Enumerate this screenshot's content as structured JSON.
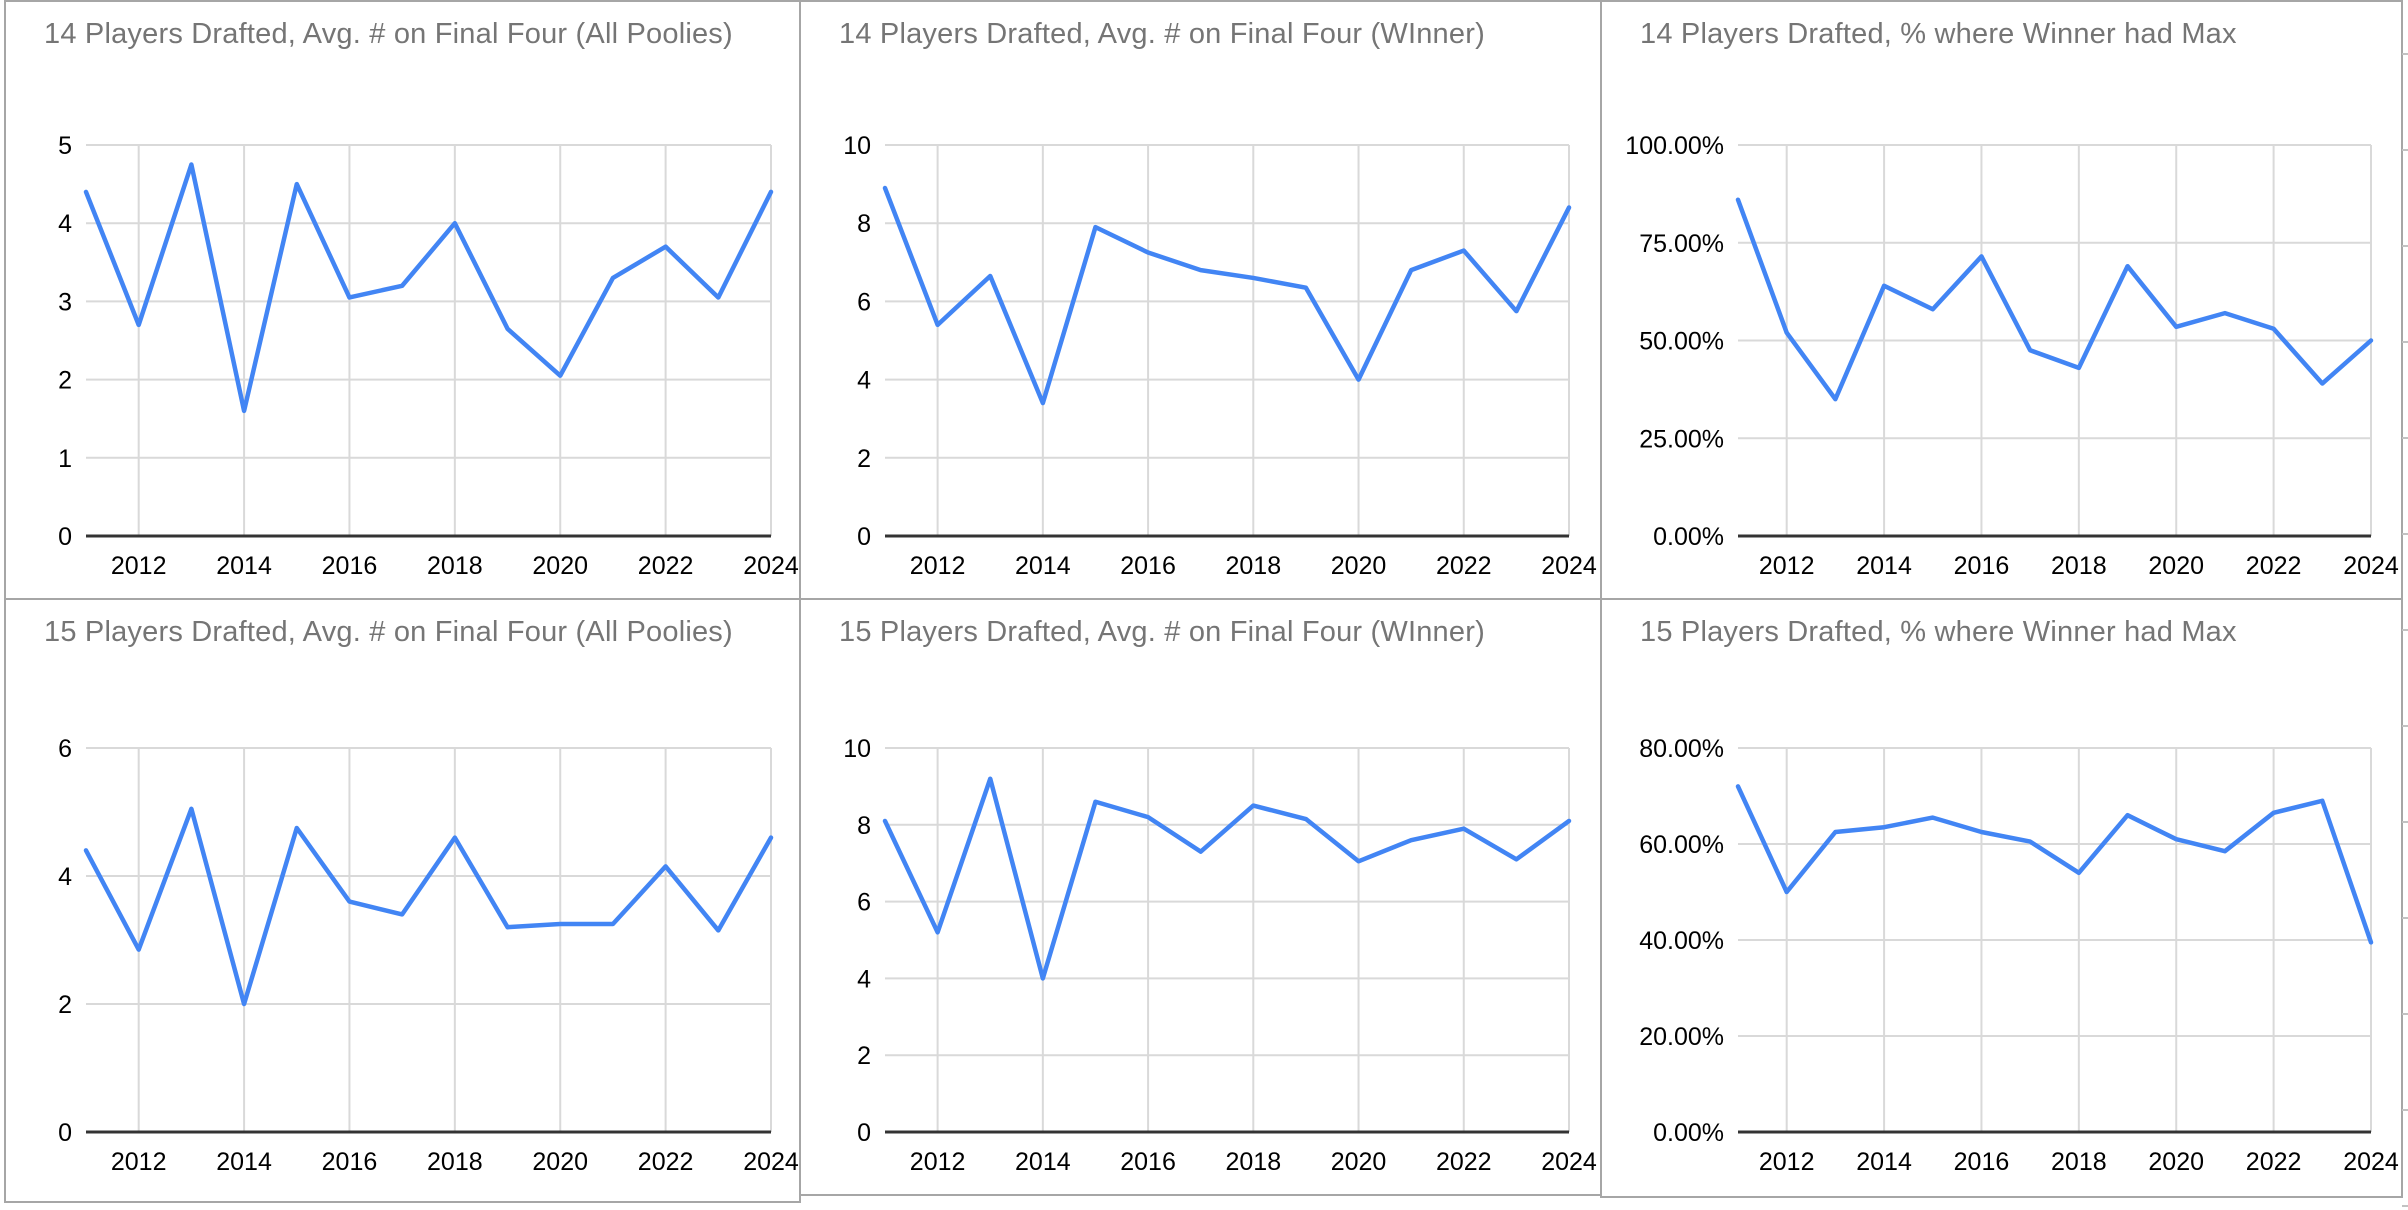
{
  "colors": {
    "line": "#4285f4",
    "title_text": "#757575",
    "gridline": "#d9d9d9",
    "axis_line": "#333333",
    "tick_label": "#000000",
    "cell_border": "#a6a6a6",
    "background": "#ffffff"
  },
  "chart_data": [
    {
      "type": "line",
      "title": "14 Players Drafted, Avg. # on Final Four (All Poolies)",
      "x": [
        2011,
        2012,
        2013,
        2014,
        2015,
        2016,
        2017,
        2018,
        2019,
        2020,
        2021,
        2022,
        2023,
        2024
      ],
      "values": [
        4.4,
        2.7,
        4.75,
        1.6,
        4.5,
        3.05,
        3.2,
        4.0,
        2.65,
        2.05,
        3.3,
        3.7,
        3.05,
        4.4
      ],
      "xlabel": "",
      "ylabel": "",
      "ylim": [
        0,
        5
      ],
      "y_ticks": [
        0,
        1,
        2,
        3,
        4,
        5
      ],
      "y_tick_format": "int",
      "x_tick_labels": [
        2012,
        2014,
        2016,
        2018,
        2020,
        2022,
        2024
      ],
      "grid": true,
      "legend": "none"
    },
    {
      "type": "line",
      "title": "14 Players Drafted, Avg. # on Final Four (WInner)",
      "x": [
        2011,
        2012,
        2013,
        2014,
        2015,
        2016,
        2017,
        2018,
        2019,
        2020,
        2021,
        2022,
        2023,
        2024
      ],
      "values": [
        8.9,
        5.4,
        6.65,
        3.4,
        7.9,
        7.25,
        6.8,
        6.6,
        6.35,
        4.0,
        6.8,
        7.3,
        5.75,
        8.4
      ],
      "xlabel": "",
      "ylabel": "",
      "ylim": [
        0,
        10
      ],
      "y_ticks": [
        0,
        2,
        4,
        6,
        8,
        10
      ],
      "y_tick_format": "int",
      "x_tick_labels": [
        2012,
        2014,
        2016,
        2018,
        2020,
        2022,
        2024
      ],
      "grid": true,
      "legend": "none"
    },
    {
      "type": "line",
      "title": "14 Players Drafted, % where Winner had Max",
      "x": [
        2011,
        2012,
        2013,
        2014,
        2015,
        2016,
        2017,
        2018,
        2019,
        2020,
        2021,
        2022,
        2023,
        2024
      ],
      "values": [
        86,
        52,
        35,
        64,
        58,
        71.5,
        47.5,
        43,
        69,
        53.5,
        57,
        53,
        39,
        50
      ],
      "xlabel": "",
      "ylabel": "",
      "ylim": [
        0,
        100
      ],
      "y_ticks": [
        0,
        25,
        50,
        75,
        100
      ],
      "y_tick_format": "percent",
      "x_tick_labels": [
        2012,
        2014,
        2016,
        2018,
        2020,
        2022,
        2024
      ],
      "grid": true,
      "legend": "none"
    },
    {
      "type": "line",
      "title": "15 Players Drafted, Avg. # on Final Four (All Poolies)",
      "x": [
        2011,
        2012,
        2013,
        2014,
        2015,
        2016,
        2017,
        2018,
        2019,
        2020,
        2021,
        2022,
        2023,
        2024
      ],
      "values": [
        4.4,
        2.85,
        5.05,
        2.0,
        4.75,
        3.6,
        3.4,
        4.6,
        3.2,
        3.25,
        3.25,
        4.15,
        3.15,
        4.6
      ],
      "xlabel": "",
      "ylabel": "",
      "ylim": [
        0,
        6
      ],
      "y_ticks": [
        0,
        2,
        4,
        6
      ],
      "y_tick_format": "int",
      "x_tick_labels": [
        2012,
        2014,
        2016,
        2018,
        2020,
        2022,
        2024
      ],
      "grid": true,
      "legend": "none"
    },
    {
      "type": "line",
      "title": "15 Players Drafted, Avg. # on Final Four (WInner)",
      "x": [
        2011,
        2012,
        2013,
        2014,
        2015,
        2016,
        2017,
        2018,
        2019,
        2020,
        2021,
        2022,
        2023,
        2024
      ],
      "values": [
        8.1,
        5.2,
        9.2,
        4.0,
        8.6,
        8.2,
        7.3,
        8.5,
        8.15,
        7.05,
        7.6,
        7.9,
        7.1,
        8.1
      ],
      "xlabel": "",
      "ylabel": "",
      "ylim": [
        0,
        10
      ],
      "y_ticks": [
        0,
        2,
        4,
        6,
        8,
        10
      ],
      "y_tick_format": "int",
      "x_tick_labels": [
        2012,
        2014,
        2016,
        2018,
        2020,
        2022,
        2024
      ],
      "grid": true,
      "legend": "none"
    },
    {
      "type": "line",
      "title": "15 Players Drafted, % where Winner had Max",
      "x": [
        2011,
        2012,
        2013,
        2014,
        2015,
        2016,
        2017,
        2018,
        2019,
        2020,
        2021,
        2022,
        2023,
        2024
      ],
      "values": [
        72,
        50,
        62.5,
        63.5,
        65.5,
        62.5,
        60.5,
        54,
        66,
        61,
        58.5,
        66.5,
        69,
        39.5
      ],
      "xlabel": "",
      "ylabel": "",
      "ylim": [
        0,
        80
      ],
      "y_ticks": [
        0,
        20,
        40,
        60,
        80
      ],
      "y_tick_format": "percent",
      "x_tick_labels": [
        2012,
        2014,
        2016,
        2018,
        2020,
        2022,
        2024
      ],
      "grid": true,
      "legend": "none"
    }
  ]
}
